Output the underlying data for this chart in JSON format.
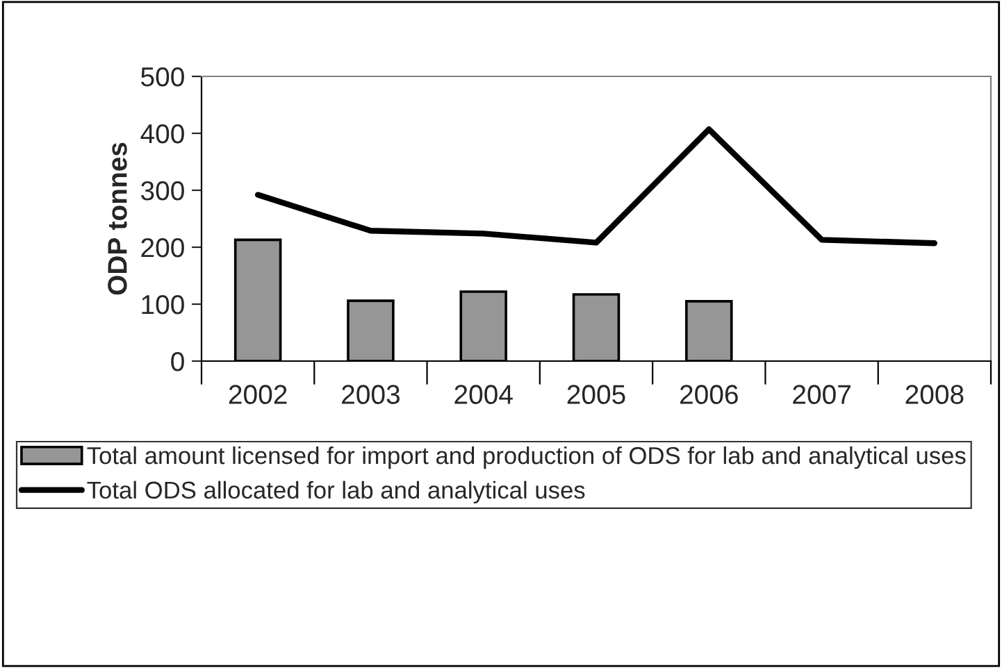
{
  "chart_data": {
    "type": "bar",
    "ylabel": "ODP tonnes",
    "categories": [
      "2002",
      "2003",
      "2004",
      "2005",
      "2006",
      "2007",
      "2008"
    ],
    "series": [
      {
        "name": "Total amount licensed for import and production of ODS for lab and analytical uses",
        "color": "#969696",
        "values": [
          213,
          106,
          122,
          117,
          105,
          null,
          null
        ]
      },
      {
        "name": "Total ODS allocated for lab and analytical uses",
        "type": "line",
        "color": "#000000",
        "values": [
          292,
          229,
          224,
          208,
          407,
          213,
          207
        ]
      }
    ],
    "ylim": [
      0,
      500
    ],
    "yticks": [
      0,
      100,
      200,
      300,
      400,
      500
    ],
    "grid": false,
    "legend": "bottom",
    "marker": "none",
    "line_style": "solid"
  }
}
